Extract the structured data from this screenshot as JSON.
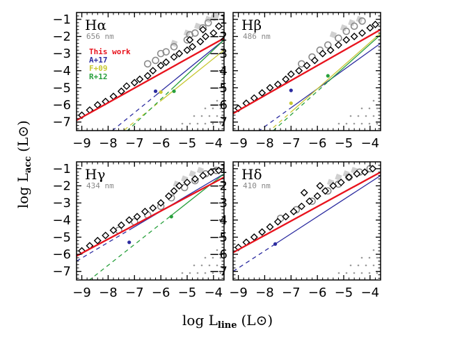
{
  "chart_data": {
    "type": "scatter",
    "xlabel": "log L",
    "xlabel_sub": "line",
    "xlabel_unit": "(L⊙)",
    "ylabel": "log L",
    "ylabel_sub": "acc",
    "ylabel_unit": "(L⊙)",
    "xlim": [
      -9.2,
      -3.6
    ],
    "ylim": [
      -7.5,
      -0.6
    ],
    "xticks": [
      "-9",
      "-8",
      "-7",
      "-6",
      "-5",
      "-4"
    ],
    "yticks": [
      "-1",
      "-2",
      "-3",
      "-4",
      "-5",
      "-6",
      "-7"
    ],
    "legend": [
      {
        "label": "This work",
        "color": "#e8141e"
      },
      {
        "label": "A+17",
        "color": "#2c2ca0"
      },
      {
        "label": "F+09",
        "color": "#c8c832"
      },
      {
        "label": "R+12",
        "color": "#28a03c"
      }
    ],
    "panels": [
      {
        "name": "Hα",
        "wavelength": "656 nm",
        "fits": [
          {
            "ref": "This work",
            "color": "#e8141e",
            "x": [
              -9.2,
              -3.6
            ],
            "y": [
              -6.9,
              -2.1
            ],
            "solid_from": -9.2
          },
          {
            "ref": "A+17",
            "color": "#2c2ca0",
            "x": [
              -9.2,
              -3.6
            ],
            "y": [
              -9.2,
              -2.2
            ],
            "solid_from": -6.2
          },
          {
            "ref": "F+09",
            "color": "#c8c832",
            "x": [
              -9.2,
              -3.6
            ],
            "y": [
              -9.7,
              -2.8
            ],
            "solid_from": -6.0
          },
          {
            "ref": "R+12",
            "color": "#28a03c",
            "x": [
              -9.2,
              -3.6
            ],
            "y": [
              -10.3,
              -2.2
            ],
            "solid_from": -5.5
          }
        ],
        "markers": [
          [
            -6.2,
            -5.2,
            "#2c2ca0"
          ],
          [
            -6.0,
            -5.25,
            "#c8c832"
          ],
          [
            -5.5,
            -5.2,
            "#28a03c"
          ]
        ],
        "points_black": [
          [
            -9.0,
            -6.6
          ],
          [
            -8.7,
            -6.3
          ],
          [
            -8.4,
            -6.0
          ],
          [
            -8.1,
            -5.8
          ],
          [
            -7.8,
            -5.5
          ],
          [
            -7.5,
            -5.2
          ],
          [
            -7.3,
            -4.9
          ],
          [
            -7.0,
            -4.7
          ],
          [
            -6.8,
            -4.5
          ],
          [
            -6.5,
            -4.3
          ],
          [
            -6.3,
            -4.0
          ],
          [
            -6.0,
            -3.7
          ],
          [
            -5.8,
            -3.5
          ],
          [
            -5.5,
            -3.2
          ],
          [
            -5.3,
            -3.0
          ],
          [
            -5.0,
            -2.8
          ],
          [
            -4.8,
            -2.6
          ],
          [
            -4.5,
            -2.3
          ],
          [
            -4.3,
            -2.0
          ],
          [
            -4.0,
            -1.8
          ],
          [
            -3.8,
            -1.4
          ],
          [
            -4.4,
            -1.6
          ],
          [
            -4.9,
            -2.2
          ]
        ],
        "points_gray": [
          [
            -6.5,
            -3.6
          ],
          [
            -6.0,
            -3.0
          ],
          [
            -5.5,
            -2.6
          ],
          [
            -5.0,
            -2.2
          ],
          [
            -4.7,
            -1.8
          ],
          [
            -4.4,
            -1.5
          ],
          [
            -4.2,
            -1.2
          ],
          [
            -5.8,
            -2.9
          ],
          [
            -6.2,
            -3.4
          ],
          [
            -4.9,
            -1.9
          ]
        ],
        "points_lightgray": [
          [
            -5.0,
            -1.8
          ],
          [
            -4.6,
            -1.4
          ],
          [
            -4.2,
            -1.0
          ],
          [
            -5.5,
            -2.4
          ],
          [
            -4.0,
            -0.9
          ],
          [
            -3.9,
            -0.8
          ]
        ]
      },
      {
        "name": "Hβ",
        "wavelength": "486 nm",
        "fits": [
          {
            "ref": "This work",
            "color": "#e8141e",
            "x": [
              -9.2,
              -3.6
            ],
            "y": [
              -6.5,
              -1.6
            ],
            "solid_from": -9.2
          },
          {
            "ref": "A+17",
            "color": "#2c2ca0",
            "x": [
              -9.2,
              -3.6
            ],
            "y": [
              -8.6,
              -2.4
            ],
            "solid_from": -7.0
          },
          {
            "ref": "F+09",
            "color": "#c8c832",
            "x": [
              -9.2,
              -3.6
            ],
            "y": [
              -9.4,
              -1.8
            ],
            "solid_from": -7.0
          },
          {
            "ref": "R+12",
            "color": "#28a03c",
            "x": [
              -9.2,
              -3.6
            ],
            "y": [
              -9.6,
              -1.9
            ],
            "solid_from": -5.6
          }
        ],
        "markers": [
          [
            -7.0,
            -5.15,
            "#2c2ca0"
          ],
          [
            -7.0,
            -5.9,
            "#c8c832"
          ],
          [
            -5.6,
            -4.3,
            "#28a03c"
          ]
        ],
        "points_black": [
          [
            -9.0,
            -6.2
          ],
          [
            -8.7,
            -5.9
          ],
          [
            -8.4,
            -5.6
          ],
          [
            -8.1,
            -5.3
          ],
          [
            -7.8,
            -5.0
          ],
          [
            -7.5,
            -4.8
          ],
          [
            -7.2,
            -4.5
          ],
          [
            -7.0,
            -4.2
          ],
          [
            -6.7,
            -4.0
          ],
          [
            -6.4,
            -3.7
          ],
          [
            -6.1,
            -3.4
          ],
          [
            -5.8,
            -3.0
          ],
          [
            -5.5,
            -2.8
          ],
          [
            -5.2,
            -2.5
          ],
          [
            -4.9,
            -2.2
          ],
          [
            -4.6,
            -2.0
          ],
          [
            -4.3,
            -1.8
          ],
          [
            -4.0,
            -1.5
          ],
          [
            -3.8,
            -1.3
          ]
        ],
        "points_gray": [
          [
            -6.2,
            -3.2
          ],
          [
            -5.9,
            -2.8
          ],
          [
            -5.6,
            -2.5
          ],
          [
            -5.2,
            -2.1
          ],
          [
            -4.9,
            -1.7
          ],
          [
            -4.6,
            -1.4
          ],
          [
            -4.3,
            -1.1
          ],
          [
            -6.6,
            -3.6
          ]
        ],
        "points_lightgray": [
          [
            -5.4,
            -1.9
          ],
          [
            -5.0,
            -1.5
          ],
          [
            -4.7,
            -1.2
          ],
          [
            -4.4,
            -1.0
          ]
        ]
      },
      {
        "name": "Hγ",
        "wavelength": "434 nm",
        "fits": [
          {
            "ref": "This work",
            "color": "#e8141e",
            "x": [
              -9.2,
              -3.6
            ],
            "y": [
              -6.1,
              -1.5
            ],
            "solid_from": -9.2
          },
          {
            "ref": "A+17",
            "color": "#2c2ca0",
            "x": [
              -9.2,
              -3.6
            ],
            "y": [
              -6.4,
              -1.3
            ],
            "solid_from": -7.2
          },
          {
            "ref": "R+12",
            "color": "#28a03c",
            "x": [
              -9.2,
              -3.6
            ],
            "y": [
              -8.1,
              -1.3
            ],
            "solid_from": -5.6
          }
        ],
        "markers": [
          [
            -7.2,
            -5.3,
            "#2c2ca0"
          ],
          [
            -5.6,
            -3.8,
            "#28a03c"
          ]
        ],
        "points_black": [
          [
            -9.0,
            -5.8
          ],
          [
            -8.7,
            -5.5
          ],
          [
            -8.4,
            -5.2
          ],
          [
            -8.1,
            -4.9
          ],
          [
            -7.8,
            -4.6
          ],
          [
            -7.5,
            -4.3
          ],
          [
            -7.2,
            -4.0
          ],
          [
            -6.9,
            -3.8
          ],
          [
            -6.6,
            -3.5
          ],
          [
            -6.3,
            -3.3
          ],
          [
            -6.0,
            -3.0
          ],
          [
            -5.7,
            -2.6
          ],
          [
            -5.5,
            -2.3
          ],
          [
            -5.3,
            -2.0
          ],
          [
            -5.0,
            -1.8
          ],
          [
            -4.7,
            -1.6
          ],
          [
            -4.4,
            -1.4
          ],
          [
            -4.1,
            -1.2
          ],
          [
            -3.8,
            -1.1
          ]
        ],
        "points_gray": [
          [
            -7.6,
            -4.6
          ],
          [
            -7.0,
            -4.1
          ],
          [
            -6.5,
            -3.7
          ],
          [
            -6.0,
            -3.2
          ],
          [
            -5.6,
            -2.7
          ],
          [
            -5.1,
            -2.1
          ],
          [
            -4.7,
            -1.7
          ],
          [
            -4.3,
            -1.3
          ],
          [
            -3.9,
            -1.1
          ]
        ],
        "points_lightgray": [
          [
            -5.4,
            -1.9
          ],
          [
            -5.1,
            -1.6
          ],
          [
            -4.8,
            -1.3
          ],
          [
            -4.5,
            -1.1
          ]
        ]
      },
      {
        "name": "Hδ",
        "wavelength": "410 nm",
        "fits": [
          {
            "ref": "This work",
            "color": "#e8141e",
            "x": [
              -9.2,
              -3.6
            ],
            "y": [
              -5.9,
              -1.2
            ],
            "solid_from": -9.2
          },
          {
            "ref": "A+17",
            "color": "#2c2ca0",
            "x": [
              -9.2,
              -3.6
            ],
            "y": [
              -7.0,
              -1.4
            ],
            "solid_from": -7.6
          }
        ],
        "markers": [
          [
            -7.6,
            -5.4,
            "#2c2ca0"
          ]
        ],
        "points_black": [
          [
            -9.0,
            -5.6
          ],
          [
            -8.7,
            -5.3
          ],
          [
            -8.4,
            -5.0
          ],
          [
            -8.1,
            -4.7
          ],
          [
            -7.8,
            -4.4
          ],
          [
            -7.5,
            -4.1
          ],
          [
            -7.2,
            -3.8
          ],
          [
            -6.9,
            -3.5
          ],
          [
            -6.6,
            -3.2
          ],
          [
            -6.3,
            -2.9
          ],
          [
            -6.0,
            -2.6
          ],
          [
            -5.7,
            -2.3
          ],
          [
            -5.4,
            -2.0
          ],
          [
            -5.1,
            -1.8
          ],
          [
            -4.8,
            -1.5
          ],
          [
            -4.5,
            -1.3
          ],
          [
            -4.2,
            -1.2
          ],
          [
            -3.9,
            -1.0
          ],
          [
            -5.9,
            -2.0
          ],
          [
            -6.5,
            -2.4
          ]
        ],
        "points_gray": [
          [
            -7.4,
            -3.9
          ],
          [
            -6.8,
            -3.4
          ],
          [
            -6.2,
            -2.9
          ],
          [
            -5.6,
            -2.3
          ],
          [
            -5.2,
            -1.9
          ],
          [
            -4.8,
            -1.5
          ],
          [
            -4.4,
            -1.2
          ],
          [
            -4.0,
            -1.0
          ]
        ],
        "points_lightgray": [
          [
            -5.5,
            -1.8
          ],
          [
            -5.2,
            -1.5
          ],
          [
            -4.9,
            -1.3
          ],
          [
            -4.6,
            -1.1
          ]
        ]
      }
    ]
  }
}
